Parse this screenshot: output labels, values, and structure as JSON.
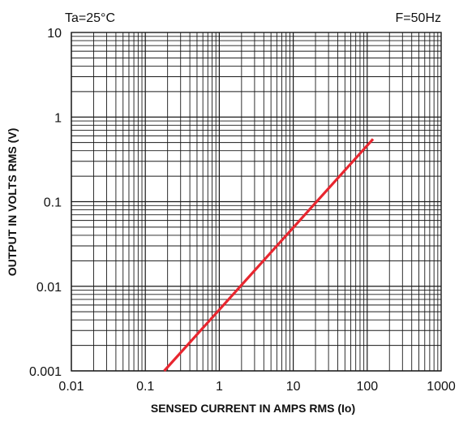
{
  "chart_data": {
    "type": "line",
    "title": "",
    "annotations": {
      "top_left": "Ta=25°C",
      "top_right": "F=50Hz"
    },
    "xlabel": "SENSED CURRENT IN AMPS RMS (Io)",
    "ylabel": "OUTPUT  IN  VOLTS RMS (V)",
    "x_scale": "log",
    "y_scale": "log",
    "xlim": [
      0.01,
      1000
    ],
    "ylim": [
      0.001,
      10
    ],
    "x_ticks": [
      {
        "value": 0.01,
        "label": "0.01"
      },
      {
        "value": 0.1,
        "label": "0.1"
      },
      {
        "value": 1,
        "label": "1"
      },
      {
        "value": 10,
        "label": "10"
      },
      {
        "value": 100,
        "label": "100"
      },
      {
        "value": 1000,
        "label": "1000"
      }
    ],
    "y_ticks": [
      {
        "value": 0.001,
        "label": "0.001"
      },
      {
        "value": 0.01,
        "label": "0.01"
      },
      {
        "value": 0.1,
        "label": "0.1"
      },
      {
        "value": 1,
        "label": "1"
      },
      {
        "value": 10,
        "label": "10"
      }
    ],
    "grid": true,
    "legend": "none",
    "series": [
      {
        "color": "#e8262f",
        "x": [
          0.18,
          120
        ],
        "y": [
          0.001,
          0.55
        ]
      }
    ]
  },
  "colors": {
    "grid": "#1a1a1a",
    "line": "#e8262f",
    "text": "#111111"
  }
}
